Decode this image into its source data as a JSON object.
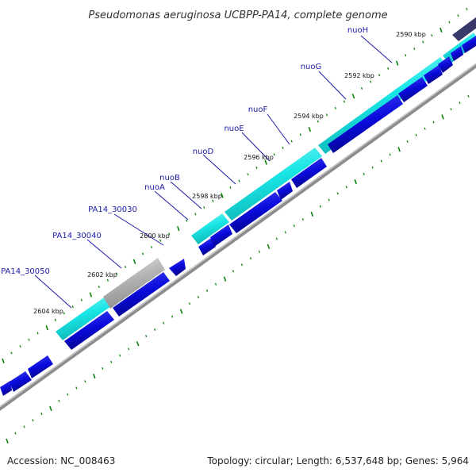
{
  "title": "Pseudomonas aeruginosa UCBPP-PA14, complete genome",
  "footer": {
    "accession": "Accession: NC_008463",
    "summary": "Topology: circular; Length: 6,537,648 bp; Genes: 5,964"
  },
  "colors": {
    "forward_gene": "#19e6e6",
    "reverse_gene": "#0a0adc",
    "other_gene": "#b4b4b4",
    "backbone": "#8c8c8c",
    "tick": "#0a820a",
    "label": "#1a1aa8"
  },
  "scale_labels": [
    "2590 kbp",
    "2592 kbp",
    "2594 kbp",
    "2596 kbp",
    "2598 kbp",
    "2600 kbp",
    "2602 kbp",
    "2604 kbp"
  ],
  "gene_labels": [
    "nuoH",
    "nuoG",
    "nuoF",
    "nuoE",
    "nuoD",
    "nuoB",
    "nuoA",
    "PA14_30030",
    "PA14_30040",
    "PA14_30050"
  ]
}
